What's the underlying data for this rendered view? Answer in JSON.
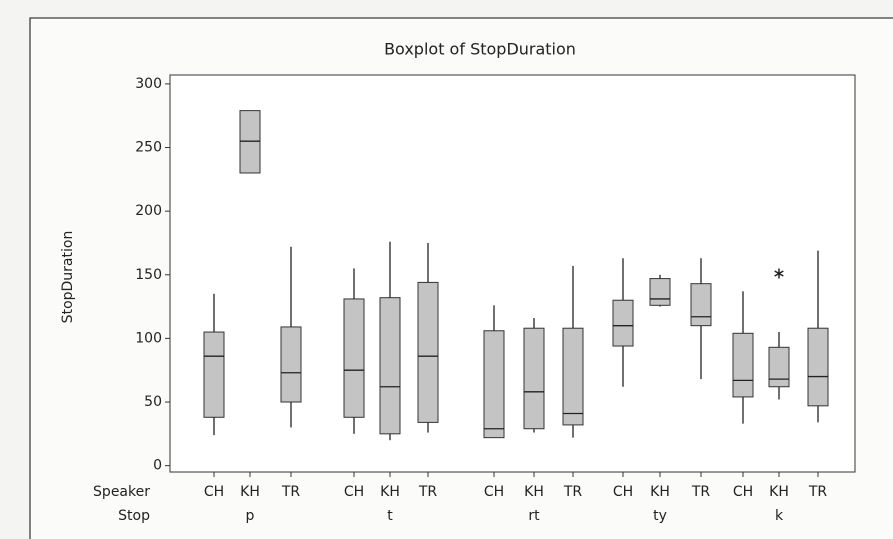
{
  "chart_data": {
    "type": "boxplot",
    "title": "Boxplot of StopDuration",
    "y_label": "StopDuration",
    "row_labels": [
      "Speaker",
      "Stop"
    ],
    "categories": [
      "CH",
      "KH",
      "TR",
      "CH",
      "KH",
      "TR",
      "CH",
      "KH",
      "TR",
      "CH",
      "KH",
      "TR",
      "CH",
      "KH",
      "TR"
    ],
    "groups": [
      "p",
      "t",
      "rt",
      "ty",
      "k"
    ],
    "boxes": [
      {
        "min": 24,
        "q1": 38,
        "median": 86,
        "q3": 105,
        "max": 135
      },
      {
        "min": 230,
        "q1": 230,
        "median": 255,
        "q3": 279,
        "max": 279
      },
      {
        "min": 30,
        "q1": 50,
        "median": 73,
        "q3": 109,
        "max": 172
      },
      {
        "min": 25,
        "q1": 38,
        "median": 75,
        "q3": 131,
        "max": 155
      },
      {
        "min": 20,
        "q1": 25,
        "median": 62,
        "q3": 132,
        "max": 176
      },
      {
        "min": 26,
        "q1": 34,
        "median": 86,
        "q3": 144,
        "max": 175
      },
      {
        "min": 22,
        "q1": 22,
        "median": 29,
        "q3": 106,
        "max": 126
      },
      {
        "min": 26,
        "q1": 29,
        "median": 58,
        "q3": 108,
        "max": 116
      },
      {
        "min": 22,
        "q1": 32,
        "median": 41,
        "q3": 108,
        "max": 157
      },
      {
        "min": 62,
        "q1": 94,
        "median": 110,
        "q3": 130,
        "max": 163
      },
      {
        "min": 125,
        "q1": 126,
        "median": 131,
        "q3": 147,
        "max": 150
      },
      {
        "min": 68,
        "q1": 110,
        "median": 117,
        "q3": 143,
        "max": 163
      },
      {
        "min": 33,
        "q1": 54,
        "median": 67,
        "q3": 104,
        "max": 137
      },
      {
        "min": 52,
        "q1": 62,
        "median": 68,
        "q3": 93,
        "max": 105,
        "outliers": [
          151
        ]
      },
      {
        "min": 34,
        "q1": 47,
        "median": 70,
        "q3": 108,
        "max": 169
      }
    ],
    "color": "#c4c4c4",
    "ylim": [
      -5,
      307
    ],
    "yticks": [
      0,
      50,
      100,
      150,
      200,
      250,
      300
    ]
  }
}
